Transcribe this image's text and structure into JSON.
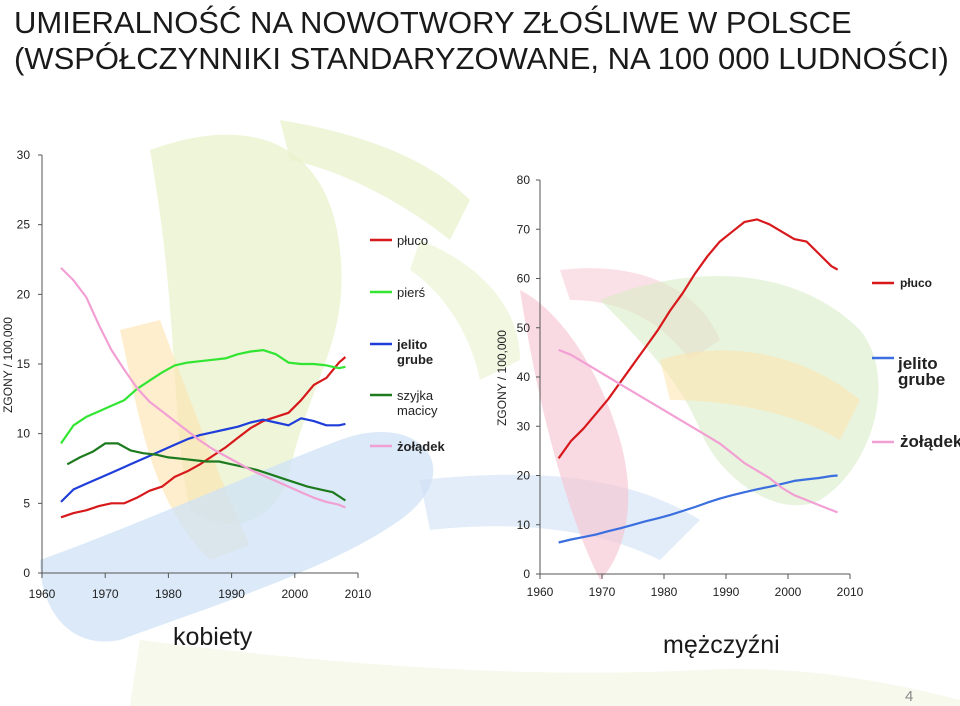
{
  "title": {
    "line1": "UMIERALNOŚĆ NA NOWOTWORY ZŁOŚLIWE W POLSCE",
    "line2": "(WSPÓŁCZYNNIKI STANDARYZOWANE, NA 100 000 LUDNOŚCI)"
  },
  "page_number": "4",
  "colors": {
    "pluco": "#d7191c",
    "piers": "#33e533",
    "jelito": "#1f3ed9",
    "szyjka": "#1e7a1e",
    "zoladek": "#f2a0d4",
    "jelito_men": "#3b6fe0"
  },
  "chart_data": [
    {
      "type": "line",
      "subtitle": "kobiety",
      "ylabel": "ZGONY / 100,000",
      "xlim": [
        1960,
        2010
      ],
      "ylim": [
        0,
        30
      ],
      "xticks": [
        "1960",
        "1970",
        "1980",
        "1990",
        "2000",
        "2010"
      ],
      "yticks": [
        "0",
        "5",
        "10",
        "15",
        "20",
        "25",
        "30"
      ],
      "legend_position": "center",
      "series": [
        {
          "name": "płuco",
          "key": "pluco",
          "bold": false,
          "x": [
            1963,
            1965,
            1967,
            1969,
            1971,
            1973,
            1975,
            1977,
            1979,
            1981,
            1983,
            1985,
            1987,
            1989,
            1991,
            1993,
            1995,
            1997,
            1999,
            2001,
            2003,
            2005,
            2007,
            2008
          ],
          "y": [
            4.0,
            4.3,
            4.5,
            4.8,
            5.0,
            5.0,
            5.4,
            5.9,
            6.2,
            6.9,
            7.3,
            7.8,
            8.4,
            9.0,
            9.7,
            10.4,
            10.9,
            11.2,
            11.5,
            12.4,
            13.5,
            14.0,
            15.1,
            15.5
          ]
        },
        {
          "name": "pierś",
          "key": "piers",
          "bold": false,
          "x": [
            1963,
            1965,
            1967,
            1969,
            1971,
            1973,
            1975,
            1977,
            1979,
            1981,
            1983,
            1985,
            1987,
            1989,
            1991,
            1993,
            1995,
            1997,
            1999,
            2001,
            2003,
            2005,
            2007,
            2008
          ],
          "y": [
            9.3,
            10.6,
            11.2,
            11.6,
            12.0,
            12.4,
            13.2,
            13.8,
            14.4,
            14.9,
            15.1,
            15.2,
            15.3,
            15.4,
            15.7,
            15.9,
            16.0,
            15.7,
            15.1,
            15.0,
            15.0,
            14.9,
            14.7,
            14.8
          ]
        },
        {
          "name": "jelito grube",
          "key": "jelito",
          "bold": true,
          "x": [
            1963,
            1965,
            1967,
            1969,
            1971,
            1973,
            1975,
            1977,
            1979,
            1981,
            1983,
            1985,
            1987,
            1989,
            1991,
            1993,
            1995,
            1997,
            1999,
            2001,
            2003,
            2005,
            2007,
            2008
          ],
          "y": [
            5.1,
            6.0,
            6.4,
            6.8,
            7.2,
            7.6,
            8.0,
            8.4,
            8.8,
            9.2,
            9.6,
            9.9,
            10.1,
            10.3,
            10.5,
            10.8,
            11.0,
            10.8,
            10.6,
            11.1,
            10.9,
            10.6,
            10.6,
            10.7
          ]
        },
        {
          "name": "szyjka macicy",
          "key": "szyjka",
          "bold": false,
          "x": [
            1964,
            1966,
            1968,
            1970,
            1972,
            1974,
            1976,
            1978,
            1980,
            1982,
            1984,
            1986,
            1988,
            1990,
            1992,
            1994,
            1996,
            1998,
            2000,
            2002,
            2004,
            2006,
            2008
          ],
          "y": [
            7.8,
            8.3,
            8.7,
            9.3,
            9.3,
            8.8,
            8.6,
            8.5,
            8.3,
            8.2,
            8.1,
            8.0,
            8.0,
            7.8,
            7.6,
            7.4,
            7.1,
            6.8,
            6.5,
            6.2,
            6.0,
            5.8,
            5.2
          ]
        },
        {
          "name": "żołądek",
          "key": "zoladek",
          "bold": true,
          "x": [
            1963,
            1965,
            1967,
            1969,
            1971,
            1973,
            1975,
            1977,
            1979,
            1981,
            1983,
            1985,
            1987,
            1989,
            1991,
            1993,
            1995,
            1997,
            1999,
            2001,
            2003,
            2005,
            2007,
            2008
          ],
          "y": [
            21.9,
            21.0,
            19.8,
            17.8,
            16.0,
            14.6,
            13.3,
            12.3,
            11.6,
            10.9,
            10.2,
            9.5,
            8.9,
            8.4,
            7.9,
            7.4,
            7.0,
            6.6,
            6.2,
            5.8,
            5.4,
            5.1,
            4.9,
            4.7
          ]
        }
      ]
    },
    {
      "type": "line",
      "subtitle": "mężczyźni",
      "ylabel": "ZGONY / 100,000",
      "xlim": [
        1960,
        2010
      ],
      "ylim": [
        0,
        80
      ],
      "xticks": [
        "1960",
        "1970",
        "1980",
        "1990",
        "2000",
        "2010"
      ],
      "yticks": [
        "0",
        "10",
        "20",
        "30",
        "40",
        "50",
        "60",
        "70",
        "80"
      ],
      "legend_position": "right",
      "series": [
        {
          "name": "płuco",
          "key": "pluco",
          "bold": false,
          "x": [
            1963,
            1965,
            1967,
            1969,
            1971,
            1973,
            1975,
            1977,
            1979,
            1981,
            1983,
            1985,
            1987,
            1989,
            1991,
            1993,
            1995,
            1997,
            1999,
            2001,
            2003,
            2005,
            2007,
            2008
          ],
          "y": [
            23.5,
            27.0,
            29.5,
            32.5,
            35.5,
            39.0,
            42.5,
            46.0,
            49.5,
            53.5,
            57.0,
            61.0,
            64.5,
            67.5,
            69.5,
            71.5,
            72.0,
            71.0,
            69.5,
            68.0,
            67.5,
            65.0,
            62.5,
            61.8
          ]
        },
        {
          "name": "jelito grube",
          "key": "jelito_men",
          "bold": true,
          "x": [
            1963,
            1965,
            1967,
            1969,
            1971,
            1973,
            1975,
            1977,
            1979,
            1981,
            1983,
            1985,
            1987,
            1989,
            1991,
            1993,
            1995,
            1997,
            1999,
            2001,
            2003,
            2005,
            2007,
            2008
          ],
          "y": [
            6.4,
            7.0,
            7.5,
            8.0,
            8.7,
            9.3,
            10.0,
            10.7,
            11.3,
            12.0,
            12.8,
            13.6,
            14.5,
            15.3,
            16.0,
            16.6,
            17.2,
            17.7,
            18.3,
            18.9,
            19.2,
            19.5,
            19.9,
            20.0
          ]
        },
        {
          "name": "żołądek",
          "key": "zoladek",
          "bold": true,
          "x": [
            1963,
            1965,
            1967,
            1969,
            1971,
            1973,
            1975,
            1977,
            1979,
            1981,
            1983,
            1985,
            1987,
            1989,
            1991,
            1993,
            1995,
            1997,
            1999,
            2001,
            2003,
            2005,
            2007,
            2008
          ],
          "y": [
            45.5,
            44.5,
            43.0,
            41.5,
            40.0,
            38.5,
            37.0,
            35.5,
            34.0,
            32.5,
            31.0,
            29.5,
            28.0,
            26.5,
            24.5,
            22.5,
            21.0,
            19.5,
            17.5,
            16.0,
            15.0,
            14.0,
            13.0,
            12.5
          ]
        }
      ]
    }
  ]
}
